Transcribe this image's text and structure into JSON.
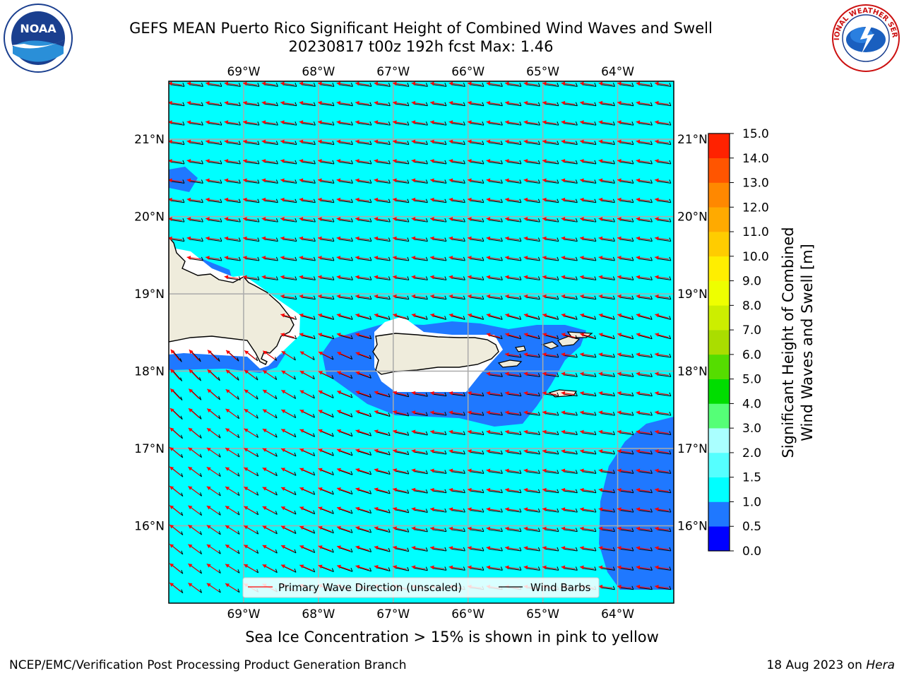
{
  "header": {
    "title_line1": "GEFS MEAN Puerto Rico Significant Height of Combined Wind Waves and Swell",
    "title_line2": "20230817 t00z 192h fcst   Max: 1.46"
  },
  "logos": {
    "left": {
      "icon": "noaa-logo-icon",
      "text": "NOAA"
    },
    "right": {
      "icon": "nws-logo-icon",
      "text": "NATIONAL WEATHER SERVICE"
    }
  },
  "map": {
    "lon_range": [
      -70,
      -63.25
    ],
    "lat_range": [
      15,
      21.75
    ],
    "lon_ticks": [
      {
        "value": -69,
        "label": "69°W"
      },
      {
        "value": -68,
        "label": "68°W"
      },
      {
        "value": -67,
        "label": "67°W"
      },
      {
        "value": -66,
        "label": "66°W"
      },
      {
        "value": -65,
        "label": "65°W"
      },
      {
        "value": -64,
        "label": "64°W"
      }
    ],
    "lat_ticks": [
      {
        "value": 16,
        "label": "16°N"
      },
      {
        "value": 17,
        "label": "17°N"
      },
      {
        "value": 18,
        "label": "18°N"
      },
      {
        "value": 19,
        "label": "19°N"
      },
      {
        "value": 20,
        "label": "20°N"
      },
      {
        "value": 21,
        "label": "21°N"
      }
    ],
    "background_level": "1.0-1.5",
    "legend": {
      "wave_direction": "Primary Wave Direction (unscaled)",
      "wind_barbs": "Wind Barbs"
    }
  },
  "colorbar": {
    "title_line1": "Significant Height of Combined",
    "title_line2": "Wind Waves and Swell [m]",
    "ticks": [
      "0.0",
      "0.5",
      "1.0",
      "1.5",
      "2.0",
      "3.0",
      "4.0",
      "5.0",
      "6.0",
      "7.0",
      "8.0",
      "9.0",
      "10.0",
      "11.0",
      "12.0",
      "13.0",
      "14.0",
      "15.0"
    ],
    "colors": [
      "#0000ff",
      "#1f78ff",
      "#00ffff",
      "#55ffff",
      "#aaffff",
      "#55ff77",
      "#00dd00",
      "#55dd00",
      "#aadd00",
      "#ccee00",
      "#eeff00",
      "#ffee00",
      "#ffcc00",
      "#ffaa00",
      "#ff8800",
      "#ff5500",
      "#ff2200"
    ]
  },
  "caption": "Sea Ice Concentration > 15% is shown in pink to yellow",
  "footer": {
    "left": "NCEP/EMC/Verification Post Processing Product Generation Branch",
    "right_date": "18 Aug 2023 on ",
    "right_host": "Hera"
  }
}
